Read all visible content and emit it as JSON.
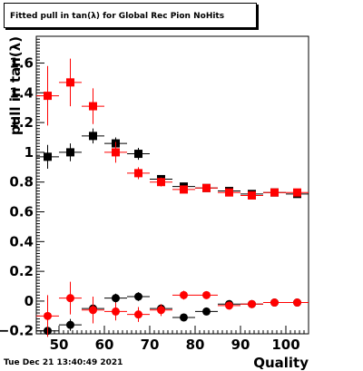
{
  "title": "Fitted pull in tan(λ) for Global Rec Pion NoHits",
  "timestamp": "Tue Dec 21 13:40:49 2021",
  "chart_data": {
    "type": "scatter",
    "title": "Fitted pull in tan(λ) for Global Rec Pion NoHits",
    "xlabel": "Quality",
    "ylabel": "pull in tan(λ)",
    "xlim": [
      45,
      105
    ],
    "ylim": [
      -0.22,
      1.78
    ],
    "xticks": [
      50,
      60,
      70,
      80,
      90,
      100
    ],
    "xtick_labels": [
      "50",
      "60",
      "70",
      "80",
      "90",
      "100"
    ],
    "yticks": [
      -0.2,
      0,
      0.2,
      0.4,
      0.6,
      0.8,
      1,
      1.2,
      1.4,
      1.6
    ],
    "ytick_labels": [
      "−0.2",
      "0",
      "0.2",
      "0.4",
      "0.6",
      "0.8",
      "1",
      "1.2",
      "1.4",
      "1.6"
    ],
    "grid": false,
    "series": [
      {
        "color": "#000000",
        "marker": "square",
        "x": [
          47.5,
          52.5,
          57.5,
          62.5,
          67.5,
          72.5,
          77.5,
          82.5,
          87.5,
          92.5,
          97.5,
          102.5
        ],
        "y": [
          0.97,
          1.0,
          1.11,
          1.06,
          0.99,
          0.82,
          0.77,
          0.76,
          0.74,
          0.72,
          0.73,
          0.72
        ],
        "yerr": [
          0.08,
          0.06,
          0.05,
          0.04,
          0.04,
          0.02,
          0.02,
          0.02,
          0.02,
          0.02,
          0.01,
          0.01
        ]
      },
      {
        "color": "#ff0000",
        "marker": "square",
        "x": [
          47.5,
          52.5,
          57.5,
          62.5,
          67.5,
          72.5,
          77.5,
          82.5,
          87.5,
          92.5,
          97.5,
          102.5
        ],
        "y": [
          1.38,
          1.47,
          1.31,
          1.0,
          0.86,
          0.8,
          0.75,
          0.76,
          0.73,
          0.71,
          0.73,
          0.73
        ],
        "yerr": [
          0.2,
          0.16,
          0.12,
          0.07,
          0.04,
          0.03,
          0.02,
          0.02,
          0.02,
          0.02,
          0.02,
          0.01
        ]
      },
      {
        "color": "#000000",
        "marker": "circle",
        "x": [
          47.5,
          52.5,
          57.5,
          62.5,
          67.5,
          72.5,
          77.5,
          82.5,
          87.5,
          92.5,
          97.5,
          102.5
        ],
        "y": [
          -0.2,
          -0.16,
          -0.05,
          0.02,
          0.03,
          -0.05,
          -0.11,
          -0.07,
          -0.02,
          -0.02,
          -0.01,
          -0.01
        ],
        "yerr": [
          0.04,
          0.04,
          0.03,
          0.03,
          0.03,
          0.02,
          0.02,
          0.02,
          0.02,
          0.01,
          0.01,
          0.01
        ]
      },
      {
        "color": "#ff0000",
        "marker": "circle",
        "x": [
          47.5,
          52.5,
          57.5,
          62.5,
          67.5,
          72.5,
          77.5,
          82.5,
          87.5,
          92.5,
          97.5,
          102.5
        ],
        "y": [
          -0.1,
          0.02,
          -0.06,
          -0.07,
          -0.09,
          -0.06,
          0.04,
          0.04,
          -0.03,
          -0.02,
          -0.01,
          -0.01
        ],
        "yerr": [
          0.14,
          0.11,
          0.09,
          0.06,
          0.05,
          0.04,
          0.03,
          0.02,
          0.02,
          0.02,
          0.01,
          0.01
        ]
      }
    ]
  }
}
